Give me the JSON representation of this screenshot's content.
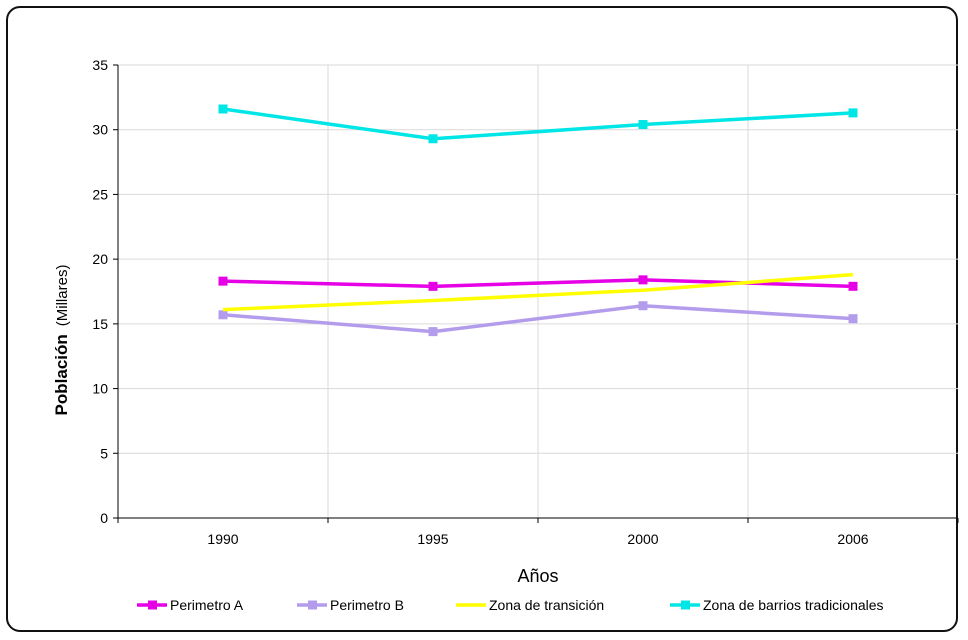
{
  "chart_data": {
    "type": "line",
    "xlabel": "Años",
    "ylabel_main": "Población",
    "ylabel_unit": "(Millares)",
    "categories": [
      "1990",
      "1995",
      "2000",
      "2006"
    ],
    "ylim": [
      0,
      35
    ],
    "yticks": [
      0,
      5,
      10,
      15,
      20,
      25,
      30,
      35
    ],
    "grid": true,
    "legend_position": "bottom",
    "series": [
      {
        "name": "Perimetro A",
        "color": "#e600e6",
        "marker": "square",
        "values": [
          18.3,
          17.9,
          18.4,
          17.9
        ]
      },
      {
        "name": "Perimetro B",
        "color": "#b39ceb",
        "marker": "square",
        "values": [
          15.7,
          14.4,
          16.4,
          15.4
        ]
      },
      {
        "name": "Zona de transición",
        "color": "#ffff00",
        "marker": "none",
        "values": [
          16.1,
          16.8,
          17.6,
          18.8
        ]
      },
      {
        "name": "Zona de barrios tradicionales",
        "color": "#00e6e6",
        "marker": "square",
        "values": [
          31.6,
          29.3,
          30.4,
          31.3
        ]
      }
    ]
  }
}
